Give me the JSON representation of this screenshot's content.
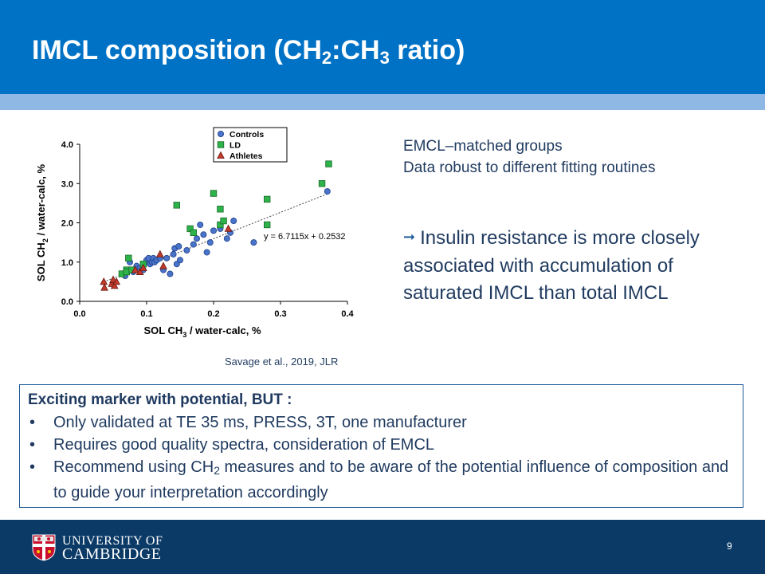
{
  "slide": {
    "title_part1": "IMCL composition (CH",
    "title_sub1": "2",
    "title_part2": ":CH",
    "title_sub2": "3",
    "title_part3": " ratio)",
    "page_number": "9"
  },
  "citation": "Savage et al., 2019, JLR",
  "notes": {
    "line1": "EMCL–matched groups",
    "line2": "Data robust to different fitting routines"
  },
  "insight": "Insulin resistance is more closely associated with accumulation of saturated IMCL than total IMCL",
  "box": {
    "title": "Exciting marker with potential, BUT :",
    "bullet1": "Only validated at TE 35 ms, PRESS, 3T, one manufacturer",
    "bullet2": "Requires good quality spectra, consideration of EMCL",
    "bullet3_pre": "Recommend using CH",
    "bullet3_sub": "2",
    "bullet3_post": " measures and to be aware of the potential influence of composition and to guide your interpretation accordingly",
    "bullet_char": "•"
  },
  "footer": {
    "line1": "UNIVERSITY OF",
    "line2": "CAMBRIDGE"
  },
  "chart_data": {
    "type": "scatter",
    "xlabel_pre": "SOL CH",
    "xlabel_sub": "3",
    "xlabel_post": " / water-calc, %",
    "ylabel_pre": "SOL CH",
    "ylabel_sub": "2",
    "ylabel_post": " / water-calc, %",
    "xlim": [
      0,
      0.4
    ],
    "ylim": [
      0,
      4.0
    ],
    "x_ticks": [
      0,
      0.1,
      0.2,
      0.3,
      0.4
    ],
    "x_tick_labels": [
      "0.0",
      "0.1",
      "0.2",
      "0.3",
      "0.4"
    ],
    "y_ticks": [
      0,
      1,
      2,
      3,
      4
    ],
    "y_tick_labels": [
      "0.0",
      "1.0",
      "2.0",
      "3.0",
      "4.0"
    ],
    "legend_position": "top",
    "trendline": {
      "slope": 6.7115,
      "intercept": 0.2532,
      "label": "y = 6.7115x + 0.2532"
    },
    "series": [
      {
        "name": "Controls",
        "marker": "circle",
        "color": "#4a74c9",
        "x": [
          0.068,
          0.075,
          0.08,
          0.085,
          0.09,
          0.095,
          0.1,
          0.1,
          0.103,
          0.105,
          0.108,
          0.11,
          0.112,
          0.115,
          0.12,
          0.125,
          0.13,
          0.135,
          0.14,
          0.142,
          0.145,
          0.148,
          0.15,
          0.16,
          0.17,
          0.175,
          0.18,
          0.185,
          0.19,
          0.195,
          0.2,
          0.21,
          0.22,
          0.225,
          0.23,
          0.26,
          0.37
        ],
        "y": [
          0.65,
          1.0,
          0.75,
          0.9,
          0.85,
          0.8,
          1.0,
          1.05,
          1.1,
          0.95,
          1.0,
          1.1,
          1.0,
          1.05,
          1.1,
          0.8,
          1.1,
          0.7,
          1.2,
          1.35,
          0.95,
          1.4,
          1.05,
          1.3,
          1.45,
          1.6,
          1.95,
          1.7,
          1.25,
          1.5,
          1.8,
          1.85,
          1.6,
          1.75,
          2.05,
          1.5,
          2.8
        ]
      },
      {
        "name": "LD",
        "marker": "square",
        "color": "#2eb24a",
        "x": [
          0.063,
          0.07,
          0.07,
          0.073,
          0.078,
          0.095,
          0.145,
          0.165,
          0.17,
          0.2,
          0.21,
          0.21,
          0.215,
          0.28,
          0.28,
          0.362,
          0.372
        ],
        "y": [
          0.7,
          0.8,
          0.75,
          1.1,
          0.8,
          0.95,
          2.45,
          1.85,
          1.75,
          2.75,
          2.35,
          1.95,
          2.05,
          2.6,
          1.95,
          3.0,
          3.5
        ]
      },
      {
        "name": "Athletes",
        "marker": "triangle",
        "color": "#c0392b",
        "x": [
          0.036,
          0.037,
          0.048,
          0.05,
          0.052,
          0.055,
          0.083,
          0.09,
          0.095,
          0.12,
          0.125,
          0.222
        ],
        "y": [
          0.5,
          0.35,
          0.45,
          0.55,
          0.4,
          0.5,
          0.8,
          0.75,
          0.85,
          1.2,
          0.9,
          1.85
        ]
      }
    ]
  }
}
